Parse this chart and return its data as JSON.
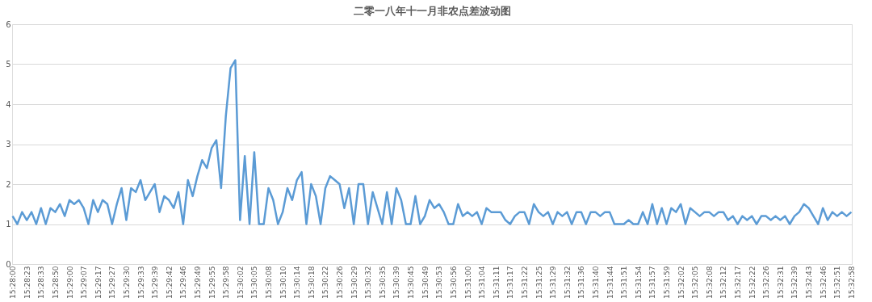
{
  "chart_data": {
    "type": "line",
    "title": "二零一八年十一月非农点差波动图",
    "categories": [
      "15:28:00",
      null,
      null,
      "15:28:23",
      null,
      null,
      "15:28:33",
      null,
      null,
      "15:28:50",
      null,
      null,
      "15:29:00",
      null,
      null,
      "15:29:07",
      null,
      null,
      "15:29:17",
      null,
      null,
      "15:29:27",
      null,
      null,
      "15:29:30",
      null,
      null,
      "15:29:33",
      null,
      null,
      "15:29:39",
      null,
      null,
      "15:29:42",
      null,
      null,
      "15:29:46",
      null,
      null,
      "15:29:49",
      null,
      null,
      "15:29:55",
      null,
      null,
      "15:29:58",
      null,
      null,
      "15:30:02",
      null,
      null,
      "15:30:05",
      null,
      null,
      "15:30:08",
      null,
      null,
      "15:30:10",
      null,
      null,
      "15:30:14",
      null,
      null,
      "15:30:18",
      null,
      null,
      "15:30:22",
      null,
      null,
      "15:30:26",
      null,
      null,
      "15:30:29",
      null,
      null,
      "15:30:32",
      null,
      null,
      "15:30:35",
      null,
      null,
      "15:30:39",
      null,
      null,
      "15:30:45",
      null,
      null,
      "15:30:49",
      null,
      null,
      "15:30:53",
      null,
      null,
      "15:30:56",
      null,
      null,
      "15:31:00",
      null,
      null,
      "15:31:04",
      null,
      null,
      "15:31:11",
      null,
      null,
      "15:31:17",
      null,
      null,
      "15:31:22",
      null,
      null,
      "15:31:25",
      null,
      null,
      "15:31:29",
      null,
      null,
      "15:31:32",
      null,
      null,
      "15:31:36",
      null,
      null,
      "15:31:40",
      null,
      null,
      "15:31:44",
      null,
      null,
      "15:31:51",
      null,
      null,
      "15:31:54",
      null,
      null,
      "15:31:57",
      null,
      null,
      "15:31:59",
      null,
      null,
      "15:32:02",
      null,
      null,
      "15:32:05",
      null,
      null,
      "15:32:08",
      null,
      null,
      "15:32:12",
      null,
      null,
      "15:32:17",
      null,
      null,
      "15:32:22",
      null,
      null,
      "15:32:26",
      null,
      null,
      "15:32:31",
      null,
      null,
      "15:32:39",
      null,
      null,
      "15:32:43",
      null,
      null,
      "15:32:46",
      null,
      null,
      "15:32:51",
      null,
      null,
      "15:32:58"
    ],
    "series": [
      {
        "color": "#5b9bd5",
        "values": [
          1.2,
          1.0,
          1.3,
          1.1,
          1.3,
          1.0,
          1.4,
          1.0,
          1.4,
          1.3,
          1.5,
          1.2,
          1.6,
          1.5,
          1.6,
          1.4,
          1.0,
          1.6,
          1.3,
          1.6,
          1.5,
          1.0,
          1.5,
          1.9,
          1.1,
          1.9,
          1.8,
          2.1,
          1.6,
          1.8,
          2.0,
          1.3,
          1.7,
          1.6,
          1.4,
          1.8,
          1.0,
          2.1,
          1.7,
          2.2,
          2.6,
          2.4,
          2.9,
          3.1,
          1.9,
          3.7,
          4.9,
          5.1,
          1.1,
          2.7,
          1.0,
          2.8,
          1.0,
          1.0,
          1.9,
          1.6,
          1.0,
          1.3,
          1.9,
          1.6,
          2.1,
          2.3,
          1.0,
          2.0,
          1.7,
          1.0,
          1.9,
          2.2,
          2.1,
          2.0,
          1.4,
          1.9,
          1.0,
          2.0,
          2.0,
          1.0,
          1.8,
          1.4,
          1.0,
          1.8,
          1.0,
          1.9,
          1.6,
          1.0,
          1.0,
          1.7,
          1.0,
          1.2,
          1.6,
          1.4,
          1.5,
          1.3,
          1.0,
          1.0,
          1.5,
          1.2,
          1.3,
          1.2,
          1.3,
          1.0,
          1.4,
          1.3,
          1.3,
          1.3,
          1.1,
          1.0,
          1.2,
          1.3,
          1.3,
          1.0,
          1.5,
          1.3,
          1.2,
          1.3,
          1.0,
          1.3,
          1.2,
          1.3,
          1.0,
          1.3,
          1.3,
          1.0,
          1.3,
          1.3,
          1.2,
          1.3,
          1.3,
          1.0,
          1.0,
          1.0,
          1.1,
          1.0,
          1.0,
          1.3,
          1.0,
          1.5,
          1.0,
          1.4,
          1.0,
          1.4,
          1.3,
          1.5,
          1.0,
          1.4,
          1.3,
          1.2,
          1.3,
          1.3,
          1.2,
          1.3,
          1.3,
          1.1,
          1.2,
          1.0,
          1.2,
          1.1,
          1.2,
          1.0,
          1.2,
          1.2,
          1.1,
          1.2,
          1.1,
          1.2,
          1.0,
          1.2,
          1.3,
          1.5,
          1.4,
          1.2,
          1.0,
          1.4,
          1.1,
          1.3,
          1.2,
          1.3,
          1.2,
          1.3
        ]
      }
    ],
    "ylim": [
      0,
      6
    ],
    "yticks": [
      0,
      1,
      2,
      3,
      4,
      5,
      6
    ],
    "grid": "y",
    "legend": false,
    "marker": "none",
    "line_style": "solid"
  }
}
